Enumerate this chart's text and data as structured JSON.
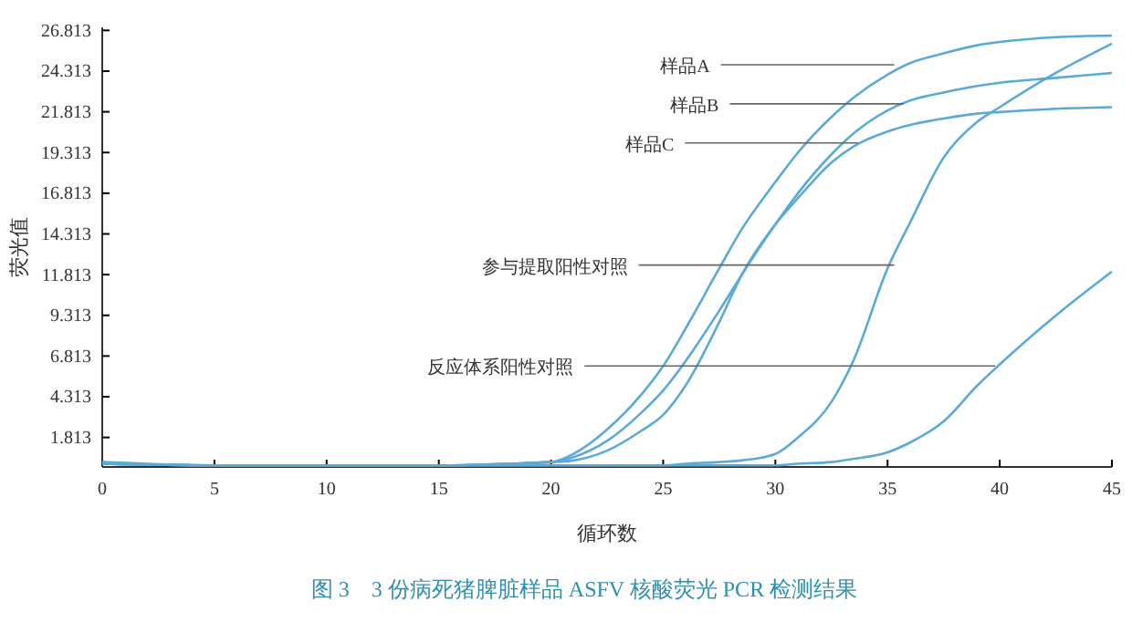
{
  "chart_data": {
    "type": "line",
    "title": "图 3　3 份病死猪脾脏样品 ASFV 核酸荧光 PCR 检测结果",
    "xlabel": "循环数",
    "ylabel": "荧光值",
    "x": [
      0,
      5,
      10,
      15,
      20,
      21,
      22.5,
      24,
      25,
      26,
      27.5,
      28.5,
      30,
      31,
      32.5,
      33.5,
      35,
      36,
      37.5,
      39,
      40,
      42.5,
      45
    ],
    "xlim": [
      0,
      45
    ],
    "xticks": [
      0,
      5,
      10,
      15,
      20,
      25,
      30,
      35,
      40,
      45
    ],
    "ylim": [
      0,
      27
    ],
    "yticks": [
      1.813,
      4.313,
      6.813,
      9.313,
      11.813,
      14.313,
      16.813,
      19.313,
      21.813,
      24.313,
      26.813
    ],
    "grid": false,
    "marker": "none",
    "line_style": "solid",
    "series": [
      {
        "color": "#5aaad8",
        "values": [
          0.3,
          0.1,
          0.1,
          0.1,
          0.3,
          0.8,
          2.3,
          4.4,
          6.2,
          8.5,
          12.2,
          14.6,
          17.5,
          19.3,
          21.5,
          22.7,
          24.1,
          24.8,
          25.4,
          25.9,
          26.1,
          26.4,
          26.5
        ]
      },
      {
        "color": "#5aaad8",
        "values": [
          0.2,
          0.1,
          0.1,
          0.1,
          0.3,
          0.6,
          1.6,
          3.3,
          4.7,
          6.5,
          9.6,
          11.8,
          14.9,
          16.8,
          19.2,
          20.5,
          21.9,
          22.5,
          23.0,
          23.4,
          23.6,
          23.9,
          24.2
        ]
      },
      {
        "color": "#5aaad8",
        "values": [
          0.2,
          0.1,
          0.1,
          0.1,
          0.3,
          0.4,
          1.0,
          2.2,
          3.2,
          5.0,
          8.9,
          11.8,
          14.9,
          16.5,
          18.7,
          19.7,
          20.6,
          21.0,
          21.4,
          21.7,
          21.8,
          22.0,
          22.1
        ]
      },
      {
        "color": "#5aaad8",
        "values": [
          0.2,
          0.1,
          0.1,
          0.1,
          0.1,
          0.1,
          0.1,
          0.1,
          0.1,
          0.2,
          0.3,
          0.4,
          0.8,
          1.8,
          4.0,
          6.6,
          12.2,
          15.0,
          19.0,
          21.2,
          22.1,
          24.2,
          26.0
        ]
      },
      {
        "color": "#5aaad8",
        "values": [
          0.2,
          0.1,
          0.1,
          0.1,
          0.1,
          0.1,
          0.1,
          0.1,
          0.1,
          0.1,
          0.1,
          0.1,
          0.1,
          0.2,
          0.3,
          0.5,
          0.9,
          1.5,
          2.8,
          5.0,
          6.3,
          9.3,
          12.0
        ]
      }
    ],
    "annotations": [
      {
        "text": "样品A",
        "x": 35.3,
        "y": 24.7
      },
      {
        "text": "样品B",
        "x": 35.7,
        "y": 22.3
      },
      {
        "text": "样品C",
        "x": 33.7,
        "y": 19.9
      },
      {
        "text": "参与提取阳性对照",
        "x": 35.3,
        "y": 12.4
      },
      {
        "text": "反应体系阳性对照",
        "x": 39.8,
        "y": 6.2
      }
    ]
  }
}
